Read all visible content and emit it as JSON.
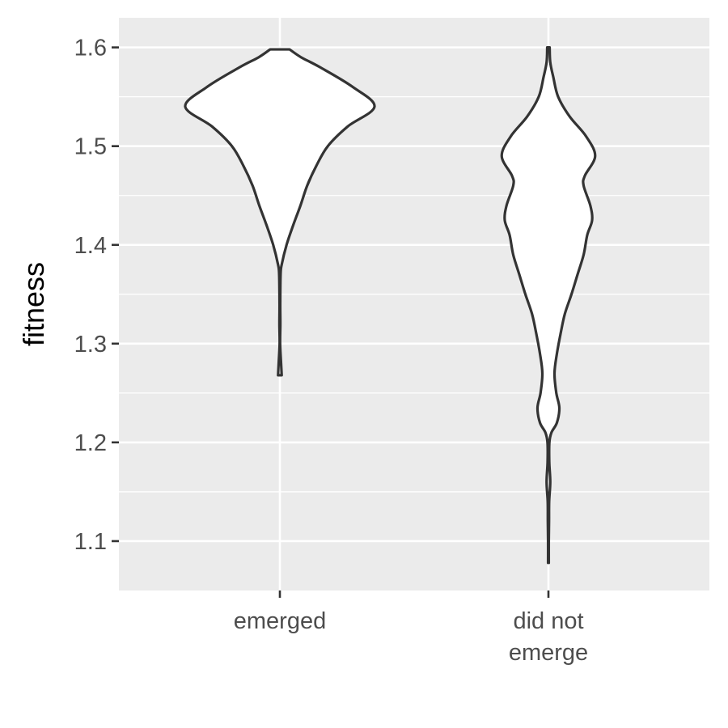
{
  "chart_data": {
    "type": "violin",
    "title": "",
    "xlabel": "",
    "ylabel": "fitness",
    "ylim": [
      1.05,
      1.63
    ],
    "yticks": [
      1.1,
      1.2,
      1.3,
      1.4,
      1.5,
      1.6
    ],
    "ytick_labels": [
      "1.1",
      "1.2",
      "1.3",
      "1.4",
      "1.5",
      "1.6"
    ],
    "grid": true,
    "legend": "none",
    "categories": [
      {
        "label_lines": [
          "emerged"
        ]
      },
      {
        "label_lines": [
          "did not",
          "emerge"
        ]
      }
    ],
    "series": [
      {
        "category": 0,
        "density": [
          [
            1.268,
            0.015
          ],
          [
            1.28,
            0.01
          ],
          [
            1.3,
            0.002
          ],
          [
            1.32,
            0.004
          ],
          [
            1.34,
            0.003
          ],
          [
            1.37,
            0.006
          ],
          [
            1.38,
            0.015
          ],
          [
            1.4,
            0.055
          ],
          [
            1.42,
            0.11
          ],
          [
            1.44,
            0.17
          ],
          [
            1.46,
            0.225
          ],
          [
            1.48,
            0.3
          ],
          [
            1.5,
            0.395
          ],
          [
            1.52,
            0.56
          ],
          [
            1.54,
            0.78
          ],
          [
            1.56,
            0.6
          ],
          [
            1.58,
            0.33
          ],
          [
            1.59,
            0.175
          ],
          [
            1.598,
            0.08
          ]
        ]
      },
      {
        "category": 1,
        "density": [
          [
            1.078,
            0.003
          ],
          [
            1.1,
            0.003
          ],
          [
            1.12,
            0.005
          ],
          [
            1.14,
            0.006
          ],
          [
            1.16,
            0.015
          ],
          [
            1.18,
            0.007
          ],
          [
            1.2,
            0.008
          ],
          [
            1.21,
            0.025
          ],
          [
            1.22,
            0.07
          ],
          [
            1.235,
            0.09
          ],
          [
            1.25,
            0.065
          ],
          [
            1.27,
            0.05
          ],
          [
            1.29,
            0.07
          ],
          [
            1.31,
            0.1
          ],
          [
            1.33,
            0.135
          ],
          [
            1.35,
            0.19
          ],
          [
            1.37,
            0.24
          ],
          [
            1.39,
            0.29
          ],
          [
            1.41,
            0.32
          ],
          [
            1.425,
            0.36
          ],
          [
            1.44,
            0.345
          ],
          [
            1.46,
            0.29
          ],
          [
            1.47,
            0.3
          ],
          [
            1.49,
            0.385
          ],
          [
            1.51,
            0.31
          ],
          [
            1.53,
            0.175
          ],
          [
            1.55,
            0.08
          ],
          [
            1.57,
            0.04
          ],
          [
            1.585,
            0.015
          ],
          [
            1.6,
            0.01
          ]
        ]
      }
    ]
  }
}
